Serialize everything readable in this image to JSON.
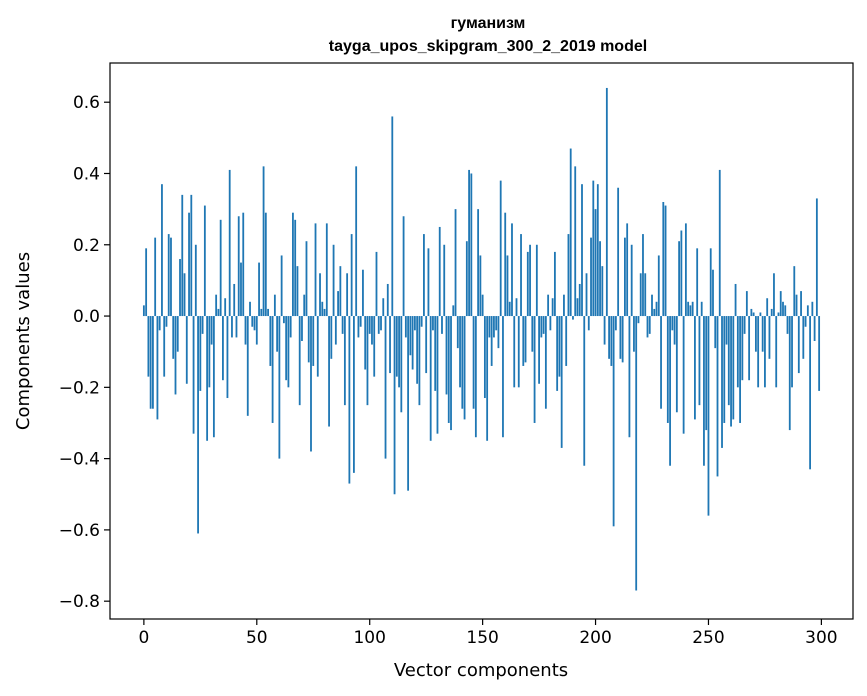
{
  "chart_data": {
    "type": "bar",
    "title": "гуманизм",
    "subtitle": "tayga_upos_skipgram_300_2_2019 model",
    "xlabel": "Vector components",
    "ylabel": "Components values",
    "xlim": [
      -15,
      314
    ],
    "ylim": [
      -0.85,
      0.71
    ],
    "xticks": [
      0,
      50,
      100,
      150,
      200,
      250,
      300
    ],
    "xtick_labels": [
      "0",
      "50",
      "100",
      "150",
      "200",
      "250",
      "300"
    ],
    "yticks": [
      -0.8,
      -0.6,
      -0.4,
      -0.2,
      0.0,
      0.2,
      0.4,
      0.6
    ],
    "ytick_labels": [
      "−0.8",
      "−0.6",
      "−0.4",
      "−0.2",
      "0.0",
      "0.2",
      "0.4",
      "0.6"
    ],
    "color": "#1f77b4",
    "grid": false,
    "values": [
      0.03,
      0.19,
      -0.17,
      -0.26,
      -0.26,
      0.22,
      -0.29,
      -0.04,
      0.37,
      -0.17,
      -0.03,
      0.23,
      0.22,
      -0.12,
      -0.22,
      -0.1,
      0.16,
      0.34,
      0.12,
      -0.19,
      0.29,
      0.34,
      -0.33,
      0.2,
      -0.61,
      -0.21,
      -0.05,
      0.31,
      -0.35,
      -0.2,
      -0.08,
      -0.34,
      0.06,
      0.02,
      0.27,
      -0.18,
      0.05,
      -0.23,
      0.41,
      -0.06,
      0.09,
      -0.06,
      0.28,
      0.15,
      0.29,
      -0.08,
      -0.28,
      0.04,
      -0.03,
      -0.04,
      -0.08,
      0.15,
      0.02,
      0.42,
      0.29,
      0.02,
      -0.14,
      -0.3,
      0.06,
      -0.1,
      -0.4,
      0.17,
      -0.02,
      -0.18,
      -0.2,
      -0.06,
      0.29,
      0.27,
      0.14,
      -0.25,
      -0.07,
      0.06,
      0.21,
      -0.13,
      -0.38,
      -0.14,
      0.26,
      -0.17,
      0.12,
      0.04,
      0.02,
      0.26,
      -0.31,
      -0.12,
      0.2,
      -0.08,
      0.07,
      0.14,
      -0.05,
      -0.25,
      0.12,
      -0.47,
      0.23,
      -0.44,
      0.42,
      -0.06,
      -0.03,
      0.13,
      -0.15,
      -0.25,
      -0.05,
      -0.08,
      -0.17,
      0.18,
      -0.05,
      -0.04,
      0.05,
      -0.4,
      0.09,
      -0.16,
      0.56,
      -0.5,
      -0.17,
      -0.2,
      -0.27,
      0.28,
      -0.06,
      -0.49,
      -0.11,
      -0.15,
      -0.04,
      -0.19,
      -0.25,
      -0.03,
      0.23,
      -0.16,
      0.19,
      -0.35,
      -0.04,
      -0.21,
      -0.33,
      0.25,
      -0.05,
      0.2,
      -0.22,
      -0.3,
      -0.32,
      0.03,
      0.3,
      -0.09,
      -0.2,
      -0.26,
      -0.29,
      0.21,
      0.41,
      0.4,
      -0.26,
      -0.34,
      0.3,
      0.17,
      0.06,
      -0.23,
      -0.35,
      -0.06,
      -0.14,
      -0.06,
      -0.04,
      -0.09,
      0.38,
      -0.34,
      0.29,
      0.17,
      0.04,
      0.26,
      -0.2,
      0.05,
      -0.2,
      0.23,
      -0.14,
      -0.13,
      0.18,
      0.2,
      -0.1,
      -0.3,
      0.2,
      -0.19,
      -0.06,
      -0.05,
      -0.26,
      0.06,
      -0.04,
      0.05,
      0.18,
      -0.21,
      -0.17,
      -0.37,
      0.06,
      -0.14,
      0.23,
      0.47,
      -0.01,
      0.42,
      0.05,
      0.09,
      0.37,
      -0.42,
      0.12,
      -0.04,
      0.22,
      0.38,
      0.3,
      0.37,
      0.21,
      0.14,
      -0.08,
      0.64,
      -0.12,
      -0.14,
      -0.59,
      -0.04,
      0.36,
      -0.12,
      -0.13,
      0.22,
      0.26,
      -0.34,
      0.2,
      -0.1,
      -0.77,
      -0.02,
      0.12,
      0.23,
      0.12,
      -0.06,
      -0.05,
      0.06,
      0.02,
      0.04,
      0.17,
      -0.26,
      0.32,
      0.31,
      -0.3,
      -0.42,
      -0.04,
      -0.08,
      -0.27,
      0.21,
      0.24,
      -0.33,
      0.26,
      0.04,
      0.03,
      0.04,
      -0.29,
      0.19,
      -0.25,
      0.04,
      -0.42,
      -0.32,
      -0.56,
      0.19,
      0.13,
      -0.09,
      -0.45,
      0.41,
      -0.37,
      -0.3,
      -0.08,
      -0.25,
      -0.31,
      -0.29,
      0.09,
      -0.2,
      -0.3,
      -0.18,
      -0.05,
      0.07,
      -0.18,
      0.02,
      0.01,
      -0.1,
      -0.2,
      0.01,
      -0.1,
      -0.2,
      0.05,
      -0.12,
      0.02,
      0.12,
      -0.2,
      0.01,
      0.07,
      0.04,
      0.03,
      -0.05,
      -0.32,
      -0.2,
      0.14,
      0.06,
      -0.16,
      0.07,
      -0.12,
      -0.03,
      0.03,
      -0.43,
      0.04,
      -0.07,
      0.33,
      -0.21
    ]
  }
}
